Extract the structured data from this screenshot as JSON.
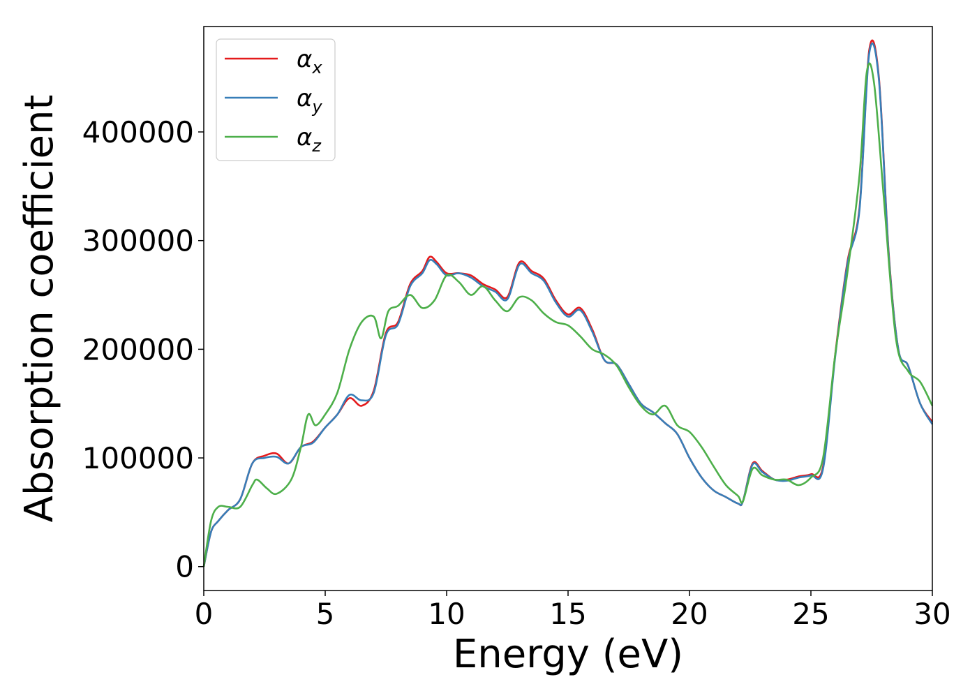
{
  "chart_data": {
    "type": "line",
    "title": "",
    "xlabel": "Energy (eV)",
    "ylabel": "Absorption coefficient",
    "xlim": [
      0,
      30
    ],
    "ylim": [
      -22000,
      497000
    ],
    "xticks": [
      0,
      5,
      10,
      15,
      20,
      25,
      30
    ],
    "yticks": [
      0,
      100000,
      200000,
      300000,
      400000
    ],
    "grid": false,
    "legend_position": "top-left",
    "series": [
      {
        "name": "α_x",
        "symbol": "α",
        "subscript": "x",
        "color": "#e41a1c",
        "x": [
          0,
          0.3,
          0.6,
          1,
          1.5,
          2,
          2.5,
          3,
          3.5,
          4,
          4.5,
          5,
          5.5,
          6,
          6.5,
          7,
          7.5,
          8,
          8.5,
          9,
          9.3,
          9.6,
          10,
          10.5,
          11,
          11.5,
          12,
          12.5,
          13,
          13.5,
          14,
          14.5,
          15,
          15.5,
          16,
          16.5,
          17,
          17.5,
          18,
          18.5,
          19,
          19.5,
          20,
          20.5,
          21,
          21.5,
          22,
          22.2,
          22.6,
          23,
          23.5,
          24,
          24.5,
          25,
          25.5,
          26,
          26.5,
          27,
          27.4,
          27.8,
          28.2,
          28.6,
          29,
          29.5,
          30
        ],
        "values": [
          0,
          32000,
          42000,
          52000,
          62000,
          95000,
          102000,
          104000,
          95000,
          110000,
          115000,
          128000,
          140000,
          155000,
          148000,
          162000,
          215000,
          225000,
          260000,
          272000,
          285000,
          280000,
          270000,
          270000,
          268000,
          260000,
          255000,
          248000,
          280000,
          272000,
          265000,
          245000,
          232000,
          238000,
          218000,
          190000,
          186000,
          168000,
          150000,
          142000,
          132000,
          122000,
          100000,
          82000,
          70000,
          64000,
          58000,
          60000,
          95000,
          88000,
          80000,
          80000,
          83000,
          85000,
          92000,
          195000,
          280000,
          330000,
          475000,
          450000,
          290000,
          200000,
          185000,
          150000,
          133000
        ]
      },
      {
        "name": "α_y",
        "symbol": "α",
        "subscript": "y",
        "color": "#377eb8",
        "x": [
          0,
          0.3,
          0.6,
          1,
          1.5,
          2,
          2.5,
          3,
          3.5,
          4,
          4.5,
          5,
          5.5,
          6,
          6.5,
          7,
          7.5,
          8,
          8.5,
          9,
          9.3,
          9.6,
          10,
          10.5,
          11,
          11.5,
          12,
          12.5,
          13,
          13.5,
          14,
          14.5,
          15,
          15.5,
          16,
          16.5,
          17,
          17.5,
          18,
          18.5,
          19,
          19.5,
          20,
          20.5,
          21,
          21.5,
          22,
          22.2,
          22.6,
          23,
          23.5,
          24,
          24.5,
          25,
          25.5,
          26,
          26.5,
          27,
          27.4,
          27.8,
          28.2,
          28.6,
          29,
          29.5,
          30
        ],
        "values": [
          0,
          32000,
          42000,
          52000,
          62000,
          95000,
          100000,
          101000,
          95000,
          110000,
          114000,
          128000,
          140000,
          158000,
          153000,
          160000,
          213000,
          223000,
          258000,
          270000,
          282000,
          278000,
          268000,
          270000,
          266000,
          258000,
          253000,
          246000,
          278000,
          270000,
          263000,
          243000,
          230000,
          236000,
          216000,
          190000,
          186000,
          168000,
          150000,
          142000,
          132000,
          122000,
          100000,
          82000,
          70000,
          64000,
          58000,
          60000,
          94000,
          87000,
          80000,
          79000,
          82000,
          84000,
          90000,
          193000,
          278000,
          328000,
          472000,
          448000,
          288000,
          200000,
          185000,
          150000,
          131000
        ]
      },
      {
        "name": "α_z",
        "symbol": "α",
        "subscript": "z",
        "color": "#4daf4a",
        "x": [
          0,
          0.3,
          0.6,
          1,
          1.5,
          2,
          2.2,
          2.6,
          3,
          3.6,
          4,
          4.3,
          4.6,
          5,
          5.5,
          6,
          6.5,
          7,
          7.3,
          7.6,
          8,
          8.5,
          9,
          9.5,
          10,
          10.5,
          11,
          11.5,
          12,
          12.5,
          13,
          13.5,
          14,
          14.5,
          15,
          15.5,
          16,
          16.5,
          17,
          17.5,
          18,
          18.5,
          19,
          19.5,
          20,
          20.5,
          21,
          21.5,
          22,
          22.2,
          22.6,
          23,
          23.5,
          24,
          24.5,
          25,
          25.5,
          26,
          26.5,
          27,
          27.3,
          27.6,
          28,
          28.5,
          29,
          29.5,
          30
        ],
        "values": [
          0,
          42000,
          55000,
          55000,
          55000,
          75000,
          80000,
          72000,
          67000,
          80000,
          110000,
          140000,
          130000,
          140000,
          160000,
          200000,
          225000,
          230000,
          210000,
          235000,
          240000,
          250000,
          238000,
          245000,
          268000,
          262000,
          250000,
          258000,
          245000,
          235000,
          248000,
          245000,
          233000,
          225000,
          222000,
          212000,
          200000,
          195000,
          185000,
          165000,
          148000,
          140000,
          148000,
          130000,
          124000,
          110000,
          92000,
          75000,
          65000,
          60000,
          90000,
          84000,
          80000,
          80000,
          75000,
          82000,
          100000,
          195000,
          270000,
          360000,
          455000,
          445000,
          340000,
          210000,
          180000,
          170000,
          148000
        ]
      }
    ]
  }
}
